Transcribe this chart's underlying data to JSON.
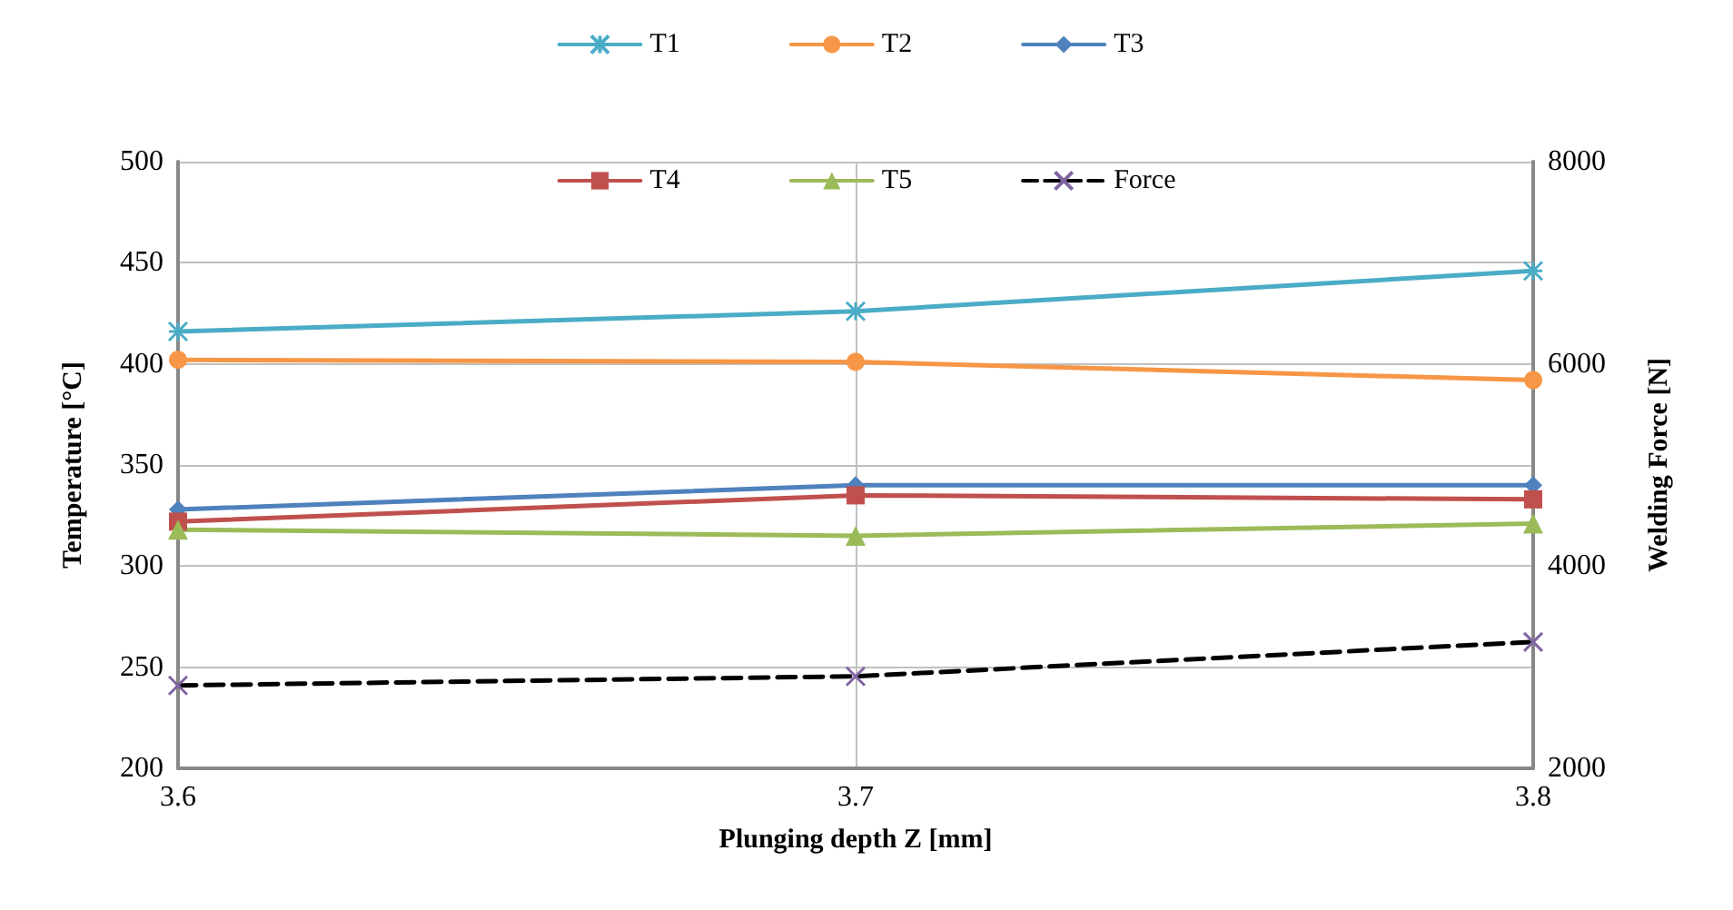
{
  "chart_data": {
    "type": "line",
    "xlabel": "Plunging depth Z [mm]",
    "ylabel": "Temperature [°C]",
    "y2label": "Welding Force [N]",
    "x": [
      3.6,
      3.7,
      3.8
    ],
    "xlim": [
      3.6,
      3.8
    ],
    "xticks": [
      3.6,
      3.7,
      3.8
    ],
    "ylim": [
      200,
      500
    ],
    "yticks": [
      200,
      250,
      300,
      350,
      400,
      450,
      500
    ],
    "y2lim": [
      2000,
      8000
    ],
    "y2ticks": [
      2000,
      4000,
      6000,
      8000
    ],
    "grid": true,
    "legend": "top",
    "series": [
      {
        "name": "T1",
        "color": "#4bacc6",
        "marker": "cross",
        "values": [
          416,
          426,
          446
        ]
      },
      {
        "name": "T2",
        "color": "#f79646",
        "marker": "circle",
        "values": [
          402,
          401,
          392
        ]
      },
      {
        "name": "T3",
        "color": "#4f81bd",
        "marker": "diamond",
        "values": [
          328,
          340,
          340
        ]
      },
      {
        "name": "T4",
        "color": "#c0504d",
        "marker": "square",
        "values": [
          322,
          335,
          333
        ]
      },
      {
        "name": "T5",
        "color": "#9bbb59",
        "marker": "triangle",
        "values": [
          318,
          315,
          321
        ]
      },
      {
        "name": "Force",
        "color": "#000000",
        "marker": "cross",
        "line_style": "dashed",
        "axis": "y2",
        "values": [
          2820,
          2910,
          3250
        ]
      }
    ]
  }
}
